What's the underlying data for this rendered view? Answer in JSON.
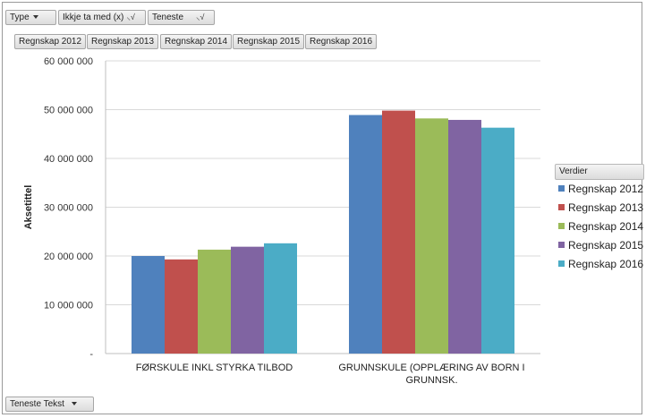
{
  "filters": {
    "type_label": "Type",
    "ikkje_label": "Ikkje ta med (x)",
    "teneste_label": "Teneste",
    "filter_glyph": "⸜√"
  },
  "series_buttons": [
    "Regnskap 2012",
    "Regnskap 2013",
    "Regnskap 2014",
    "Regnskap 2015",
    "Regnskap 2016"
  ],
  "axis_field": {
    "label": "Teneste Tekst"
  },
  "legend": {
    "title": "Verdier"
  },
  "colors": {
    "Regnskap 2012": "#4f81bd",
    "Regnskap 2013": "#c0504d",
    "Regnskap 2014": "#9bbb59",
    "Regnskap 2015": "#8064a2",
    "Regnskap 2016": "#4bacc6"
  },
  "chart_data": {
    "type": "bar",
    "categories": [
      "FØRSKULE INKL STYRKA TILBOD",
      "GRUNNSKULE (OPPLÆRING AV BORN I GRUNNSK."
    ],
    "series": [
      {
        "name": "Regnskap 2012",
        "values": [
          20000000,
          48900000
        ]
      },
      {
        "name": "Regnskap 2013",
        "values": [
          19300000,
          49800000
        ]
      },
      {
        "name": "Regnskap 2014",
        "values": [
          21300000,
          48200000
        ]
      },
      {
        "name": "Regnskap 2015",
        "values": [
          21900000,
          47900000
        ]
      },
      {
        "name": "Regnskap 2016",
        "values": [
          22600000,
          46300000
        ]
      }
    ],
    "ylabel": "Aksetittel",
    "ylim": [
      0,
      60000000
    ],
    "yticks": [
      "-",
      "10 000 000",
      "20 000 000",
      "30 000 000",
      "40 000 000",
      "50 000 000",
      "60 000 000"
    ],
    "grid": true,
    "legend_position": "right"
  }
}
